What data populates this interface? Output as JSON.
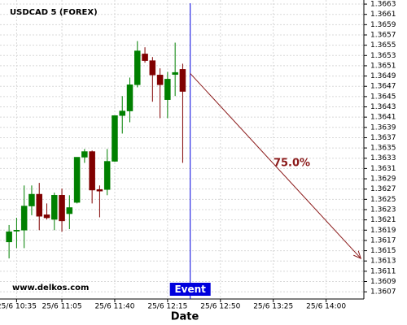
{
  "chart_data": {
    "type": "candlestick",
    "title": "USDCAD 5 (FOREX)",
    "x_label": "Date",
    "watermark": "www.delkos.com",
    "x": [
      "25/6 10:30",
      "25/6 10:35",
      "25/6 10:40",
      "25/6 10:45",
      "25/6 10:50",
      "25/6 10:55",
      "25/6 11:00",
      "25/6 11:05",
      "25/6 11:10",
      "25/6 11:15",
      "25/6 11:20",
      "25/6 11:25",
      "25/6 11:30",
      "25/6 11:35",
      "25/6 11:40",
      "25/6 11:45",
      "25/6 11:50",
      "25/6 11:55",
      "25/6 12:00",
      "25/6 12:05",
      "25/6 12:10",
      "25/6 12:15",
      "25/6 12:20",
      "25/6 12:25"
    ],
    "open": [
      1.36167,
      1.36188,
      1.3619,
      1.36237,
      1.3626,
      1.3622,
      1.36211,
      1.36258,
      1.36222,
      1.36244,
      1.36332,
      1.36343,
      1.36269,
      1.36269,
      1.36324,
      1.36413,
      1.36422,
      1.36473,
      1.36533,
      1.3652,
      1.36492,
      1.36444,
      1.36493,
      1.36503
    ],
    "high": [
      1.362,
      1.36214,
      1.36277,
      1.36277,
      1.36282,
      1.36242,
      1.36263,
      1.36271,
      1.36258,
      1.36332,
      1.36348,
      1.36345,
      1.36277,
      1.36348,
      1.36413,
      1.36451,
      1.36487,
      1.36558,
      1.36546,
      1.36527,
      1.36505,
      1.36498,
      1.36555,
      1.36514
    ],
    "low": [
      1.36135,
      1.36155,
      1.36155,
      1.36219,
      1.3619,
      1.36211,
      1.3619,
      1.36187,
      1.36192,
      1.36242,
      1.36321,
      1.36242,
      1.36215,
      1.36258,
      1.36323,
      1.36378,
      1.364,
      1.36468,
      1.36516,
      1.3644,
      1.36408,
      1.36408,
      1.36451,
      1.36321
    ],
    "close": [
      1.36187,
      1.3619,
      1.36237,
      1.3626,
      1.36217,
      1.36214,
      1.36258,
      1.36208,
      1.36234,
      1.36332,
      1.36343,
      1.36268,
      1.36266,
      1.36324,
      1.36413,
      1.36422,
      1.36473,
      1.36539,
      1.3652,
      1.36492,
      1.36473,
      1.36484,
      1.36497,
      1.3646
    ],
    "up_color": "#008000",
    "down_color": "#800000",
    "xlim": [
      "25/6 10:24",
      "25/6 14:25"
    ],
    "xticks": [
      "25/6 10:35",
      "25/6 11:05",
      "25/6 11:40",
      "25/6 12:15",
      "25/6 12:50",
      "25/6 13:25",
      "25/6 14:00"
    ],
    "ylim": [
      1.36056,
      1.36638
    ],
    "yticks": [
      1.3607,
      1.3609,
      1.3611,
      1.3613,
      1.3615,
      1.3617,
      1.3619,
      1.3621,
      1.3623,
      1.3625,
      1.3627,
      1.3629,
      1.3631,
      1.3633,
      1.3635,
      1.3637,
      1.3639,
      1.3641,
      1.3643,
      1.3645,
      1.3647,
      1.3649,
      1.3651,
      1.3653,
      1.3655,
      1.3657,
      1.3659,
      1.3661,
      1.3663
    ],
    "grid": true,
    "event": {
      "x": "25/6 12:30",
      "label": "Event",
      "color": "#0000dd"
    },
    "forecast": {
      "x": [
        "25/6 12:30",
        "25/6 14:23"
      ],
      "y": [
        1.36495,
        1.36135
      ],
      "label": "75.0%",
      "color": "#8b1a1a"
    }
  }
}
